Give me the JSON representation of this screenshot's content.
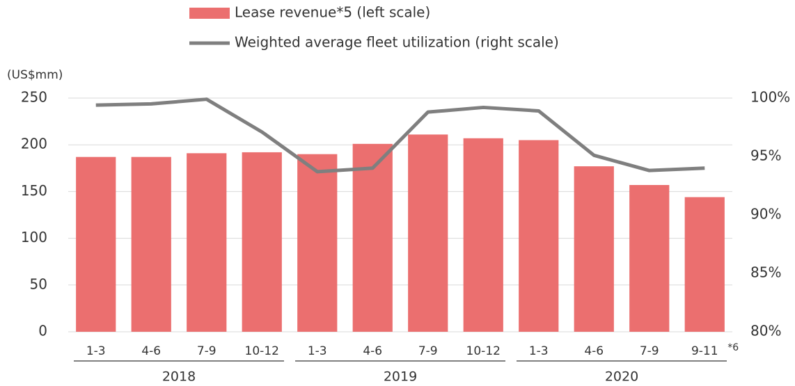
{
  "chart_data": {
    "type": "bar_line",
    "y_label": "(US$mm)",
    "categories": [
      "1-3",
      "4-6",
      "7-9",
      "10-12",
      "1-3",
      "4-6",
      "7-9",
      "10-12",
      "1-3",
      "4-6",
      "7-9",
      "9-11"
    ],
    "annotation": "*6",
    "groups": [
      {
        "label": "2018",
        "start": 0,
        "end": 3
      },
      {
        "label": "2019",
        "start": 4,
        "end": 7
      },
      {
        "label": "2020",
        "start": 8,
        "end": 11
      }
    ],
    "series": [
      {
        "name": "Lease revenue*5 (left scale)",
        "color": "#eb6f6f",
        "kind": "bar",
        "values": [
          187,
          187,
          191,
          192,
          190,
          201,
          211,
          207,
          205,
          177,
          157,
          144
        ]
      },
      {
        "name": "Weighted average fleet utilization (right scale)",
        "color": "#7f7f7f",
        "kind": "line",
        "axis": "y2",
        "values": [
          99.4,
          99.5,
          99.9,
          97.1,
          93.7,
          94.0,
          98.8,
          99.2,
          98.9,
          95.1,
          93.8,
          94.0
        ]
      }
    ],
    "ylim": [
      0,
      250
    ],
    "yticks": [
      0,
      50,
      100,
      150,
      200,
      250
    ],
    "y2lim": [
      80,
      100
    ],
    "y2ticks": [
      {
        "value": 80,
        "label": "80%"
      },
      {
        "value": 85,
        "label": "85%"
      },
      {
        "value": 90,
        "label": "90%"
      },
      {
        "value": 95,
        "label": "95%"
      },
      {
        "value": 100,
        "label": "100%"
      }
    ],
    "grid": true
  }
}
